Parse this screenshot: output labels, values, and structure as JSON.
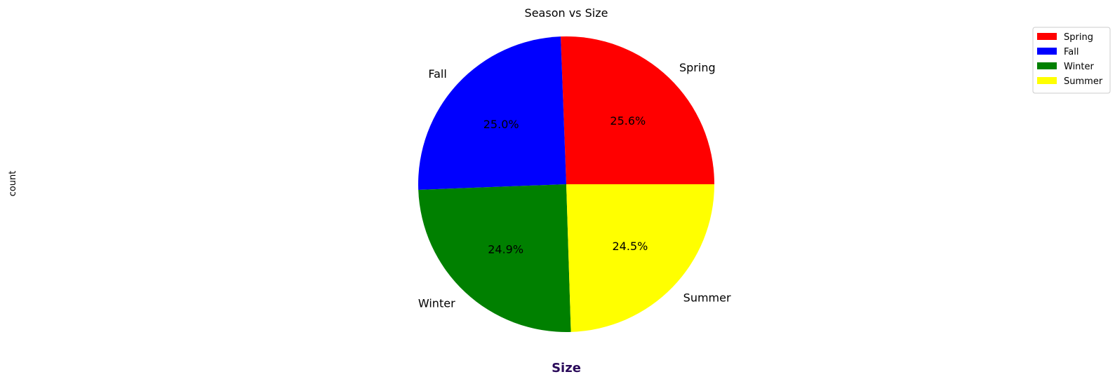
{
  "chart_data": {
    "type": "pie",
    "title": "Season vs Size",
    "xlabel": "Size",
    "ylabel": "count",
    "legend_position": "top-right",
    "slices": [
      {
        "label": "Spring",
        "value": 25.6,
        "pct_label": "25.6%",
        "color": "#ff0000"
      },
      {
        "label": "Fall",
        "value": 25.0,
        "pct_label": "25.0%",
        "color": "#0000ff"
      },
      {
        "label": "Winter",
        "value": 24.9,
        "pct_label": "24.9%",
        "color": "#008000"
      },
      {
        "label": "Summer",
        "value": 24.5,
        "pct_label": "24.5%",
        "color": "#ffff00"
      }
    ]
  }
}
